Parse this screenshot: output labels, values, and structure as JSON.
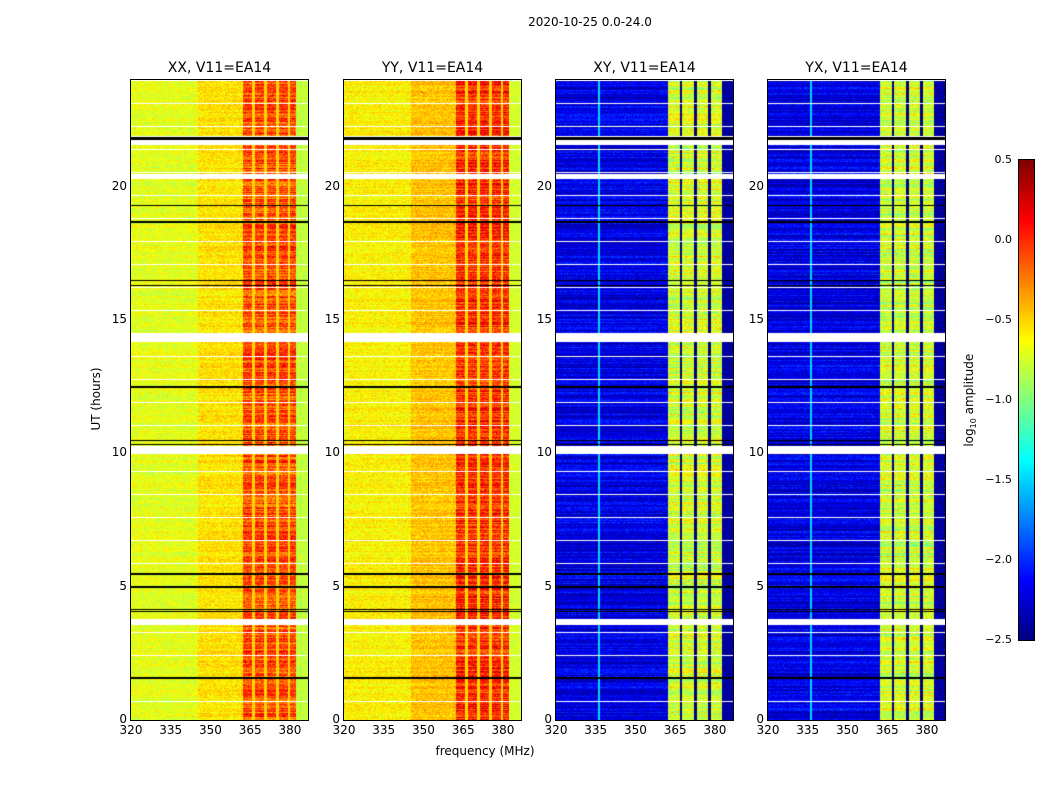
{
  "chart_data": {
    "type": "heatmap",
    "title": "2020-10-25 0.0-24.0",
    "xlabel": "frequency (MHz)",
    "ylabel": "UT (hours)",
    "xlim": [
      320,
      386.8
    ],
    "ylim": [
      0,
      24
    ],
    "xticks": [
      "320",
      "335",
      "350",
      "365",
      "380"
    ],
    "yticks": [
      "0",
      "5",
      "10",
      "15",
      "20"
    ],
    "colorbar": {
      "label": "log10 amplitude",
      "range": [
        -2.5,
        0.5
      ],
      "ticks": [
        "0.5",
        "0.0",
        "−0.5",
        "−1.0",
        "−1.5",
        "−2.0",
        "−2.5"
      ],
      "colormap": "jet"
    },
    "flagged_time_ranges_hours": [
      [
        3.6,
        3.8
      ],
      [
        10.0,
        10.3
      ],
      [
        14.2,
        14.5
      ],
      [
        20.3,
        20.5
      ],
      [
        21.6,
        21.9
      ]
    ],
    "black_time_lines_hours": [
      1.6,
      4.1,
      4.15,
      5.0,
      5.5,
      10.35,
      10.5,
      12.5,
      16.3,
      16.5,
      18.7,
      19.3,
      21.8,
      21.85
    ],
    "panels": [
      {
        "title": "XX, V11=EA14",
        "low_band_mhz": [
          320,
          362
        ],
        "low_band_level": -0.6,
        "high_band_mhz": [
          362,
          382
        ],
        "high_band_level": -0.1,
        "edge_level": -0.8,
        "gap_columns_mhz": [
          366,
          370.5,
          375,
          379.5
        ]
      },
      {
        "title": "YY, V11=EA14",
        "low_band_mhz": [
          320,
          362
        ],
        "low_band_level": -0.5,
        "high_band_mhz": [
          362,
          382
        ],
        "high_band_level": 0.0,
        "edge_level": -0.75,
        "gap_columns_mhz": [
          366,
          370.5,
          375,
          379.5
        ]
      },
      {
        "title": "XY, V11=EA14",
        "low_band_mhz": [
          320,
          362
        ],
        "low_band_level": -2.2,
        "high_band_mhz": [
          362,
          382.6
        ],
        "high_band_level": -0.75,
        "edge_level": -2.4,
        "gap_columns_mhz": [
          367,
          372.5,
          377.7
        ],
        "bright_column_mhz": 336
      },
      {
        "title": "YX, V11=EA14",
        "low_band_mhz": [
          320,
          362
        ],
        "low_band_level": -2.2,
        "high_band_mhz": [
          362,
          382.6
        ],
        "high_band_level": -0.75,
        "edge_level": -2.4,
        "gap_columns_mhz": [
          367,
          372.5,
          377.7
        ],
        "bright_column_mhz": 336
      }
    ]
  }
}
